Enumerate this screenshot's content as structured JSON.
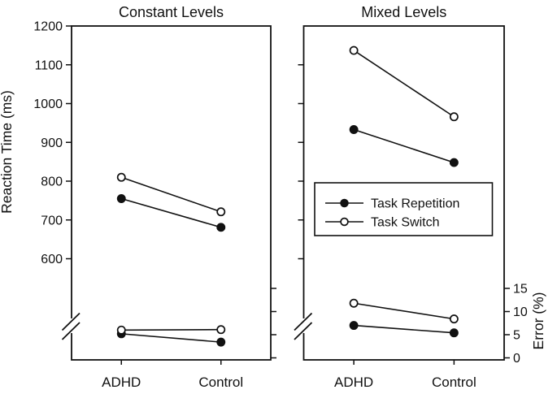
{
  "figure": {
    "colors": {
      "foreground": "#111111",
      "background": "#ffffff"
    },
    "y_axis_left": {
      "label": "Reaction Time (ms)",
      "ticks": [
        1200,
        1100,
        1000,
        900,
        800,
        700,
        600
      ],
      "range": [
        600,
        1200
      ],
      "axis_break": true
    },
    "y_axis_right": {
      "label": "Error (%)",
      "ticks": [
        15,
        10,
        5,
        0
      ],
      "range": [
        0,
        15
      ]
    },
    "x_categories": [
      "ADHD",
      "Control"
    ],
    "legend": {
      "position": "center-right-panel",
      "items": [
        {
          "label": "Task Repetition",
          "marker": "filled-circle"
        },
        {
          "label": "Task Switch",
          "marker": "open-circle"
        }
      ]
    }
  },
  "chart_data": [
    {
      "type": "line",
      "title": "Constant Levels",
      "categories": [
        "ADHD",
        "Control"
      ],
      "series": [
        {
          "name": "Task Repetition",
          "axis": "reaction_time_ms",
          "marker": "filled-circle",
          "values": [
            755,
            681
          ]
        },
        {
          "name": "Task Switch",
          "axis": "reaction_time_ms",
          "marker": "open-circle",
          "values": [
            810,
            721
          ]
        },
        {
          "name": "Task Repetition",
          "axis": "error_pct",
          "marker": "filled-circle",
          "values": [
            5.2,
            3.4
          ]
        },
        {
          "name": "Task Switch",
          "axis": "error_pct",
          "marker": "open-circle",
          "values": [
            6.0,
            6.1
          ]
        }
      ],
      "ylim_reaction_time": [
        600,
        1200
      ],
      "ylim_error": [
        0,
        15
      ],
      "grid": false
    },
    {
      "type": "line",
      "title": "Mixed Levels",
      "categories": [
        "ADHD",
        "Control"
      ],
      "series": [
        {
          "name": "Task Repetition",
          "axis": "reaction_time_ms",
          "marker": "filled-circle",
          "values": [
            933,
            848
          ]
        },
        {
          "name": "Task Switch",
          "axis": "reaction_time_ms",
          "marker": "open-circle",
          "values": [
            1137,
            966
          ]
        },
        {
          "name": "Task Repetition",
          "axis": "error_pct",
          "marker": "filled-circle",
          "values": [
            7.0,
            5.4
          ]
        },
        {
          "name": "Task Switch",
          "axis": "error_pct",
          "marker": "open-circle",
          "values": [
            11.8,
            8.4
          ]
        }
      ],
      "ylim_reaction_time": [
        600,
        1200
      ],
      "ylim_error": [
        0,
        15
      ],
      "grid": false
    }
  ]
}
